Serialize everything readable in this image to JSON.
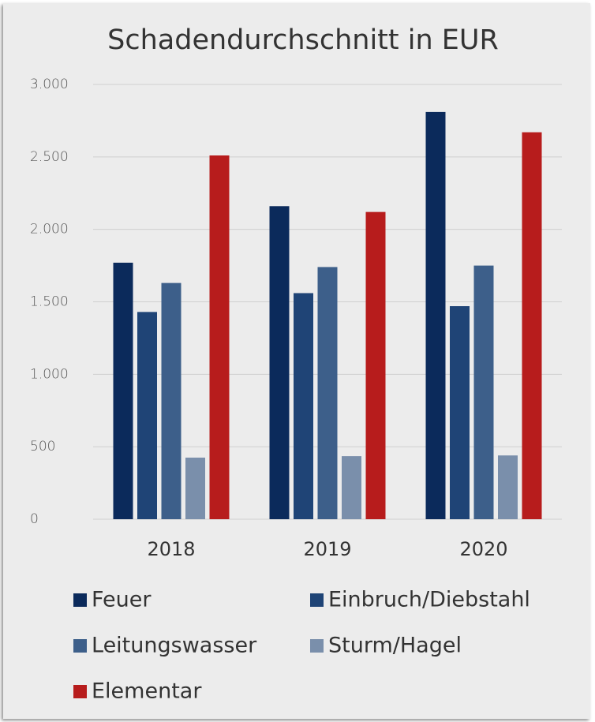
{
  "chart_data": {
    "type": "bar",
    "title": "Schadendurchschnitt in EUR",
    "categories": [
      "2018",
      "2019",
      "2020"
    ],
    "series": [
      {
        "name": "Feuer",
        "color": "#0b2a5b",
        "values": [
          1770,
          2160,
          2810
        ]
      },
      {
        "name": "Einbruch/Diebstahl",
        "color": "#1f4476",
        "values": [
          1430,
          1560,
          1470
        ]
      },
      {
        "name": "Leitungswasser",
        "color": "#3d5f8a",
        "values": [
          1630,
          1740,
          1750
        ]
      },
      {
        "name": "Sturm/Hagel",
        "color": "#7a8fab",
        "values": [
          425,
          435,
          440
        ]
      },
      {
        "name": "Elementar",
        "color": "#b71c1c",
        "values": [
          2510,
          2120,
          2670
        ]
      }
    ],
    "ylim": [
      0,
      3000
    ],
    "yticks": [
      0,
      500,
      {
        "value": 1000,
        "label": "1.000"
      },
      {
        "value": 1500,
        "label": "1.500"
      },
      {
        "value": 2000,
        "label": "2.000"
      },
      {
        "value": 2500,
        "label": "2.500"
      },
      {
        "value": 3000,
        "label": "3.000"
      }
    ],
    "grid": true,
    "legend": "bottom"
  }
}
